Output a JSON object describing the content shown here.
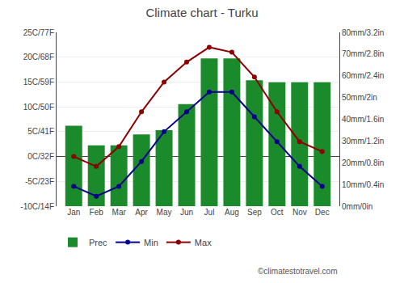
{
  "chart_data": {
    "type": "bar",
    "title": "Climate chart - Turku",
    "categories": [
      "Jan",
      "Feb",
      "Mar",
      "Apr",
      "May",
      "Jun",
      "Jul",
      "Aug",
      "Sep",
      "Oct",
      "Nov",
      "Dec"
    ],
    "series": [
      {
        "name": "Prec",
        "type": "bar",
        "axis": "y2",
        "color": "#1a8a2a",
        "values": [
          37,
          28,
          28,
          33,
          35,
          47,
          68,
          68,
          58,
          57,
          57,
          57
        ]
      },
      {
        "name": "Min",
        "type": "line",
        "color": "#00008B",
        "marker": "circle",
        "values": [
          -6,
          -8,
          -6,
          -1,
          5,
          9,
          13,
          13,
          8,
          3,
          -2,
          -6
        ]
      },
      {
        "name": "Max",
        "type": "line",
        "color": "#8B0000",
        "marker": "circle",
        "values": [
          0,
          -2,
          2,
          9,
          15,
          19,
          22,
          21,
          16,
          9,
          3,
          1
        ]
      }
    ],
    "ylim": [
      -10,
      25
    ],
    "yticks": [
      {
        "value": -10,
        "label": "-10C/14F"
      },
      {
        "value": -5,
        "label": "-5C/23F"
      },
      {
        "value": 0,
        "label": "0C/32F"
      },
      {
        "value": 5,
        "label": "5C/41F"
      },
      {
        "value": 10,
        "label": "10C/50F"
      },
      {
        "value": 15,
        "label": "15C/59F"
      },
      {
        "value": 20,
        "label": "20C/68F"
      },
      {
        "value": 25,
        "label": "25C/77F"
      }
    ],
    "y2lim": [
      0,
      80
    ],
    "y2ticks": [
      {
        "value": 0,
        "label": "0mm/0in"
      },
      {
        "value": 10,
        "label": "10mm/0.4in"
      },
      {
        "value": 20,
        "label": "20mm/0.8in"
      },
      {
        "value": 30,
        "label": "30mm/1.2in"
      },
      {
        "value": 40,
        "label": "40mm/1.6in"
      },
      {
        "value": 50,
        "label": "50mm/2in"
      },
      {
        "value": 60,
        "label": "60mm/2.4in"
      },
      {
        "value": 70,
        "label": "70mm/2.8in"
      },
      {
        "value": 80,
        "label": "80mm/3.2in"
      }
    ],
    "grid": true,
    "legend": "bottom",
    "annotations": [
      "©climatestotravel.com"
    ]
  }
}
